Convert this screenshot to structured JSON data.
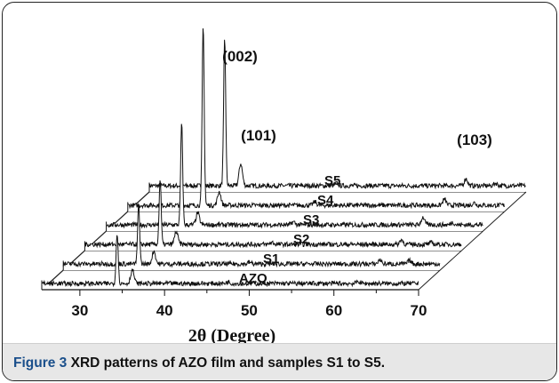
{
  "caption": {
    "label": "Figure 3",
    "text": "XRD patterns of AZO film and samples S1 to S5."
  },
  "chart_data": {
    "type": "line",
    "layout": "waterfall-3d",
    "xlabel": "2θ (Degree)",
    "ylabel": "",
    "xlim": [
      25.5,
      70
    ],
    "xticks": [
      30,
      40,
      50,
      60,
      70
    ],
    "grid": false,
    "series": [
      {
        "name": "AZO",
        "peaks": [
          [
            34.4,
            6
          ],
          [
            36.2,
            1.6
          ],
          [
            47.5,
            0.2
          ],
          [
            62.9,
            0.25
          ]
        ]
      },
      {
        "name": "S1",
        "peaks": [
          [
            34.4,
            7
          ],
          [
            36.2,
            1.5
          ],
          [
            47.5,
            0.2
          ],
          [
            62.9,
            0.5
          ],
          [
            66.4,
            0.4
          ]
        ]
      },
      {
        "name": "S2",
        "peaks": [
          [
            34.4,
            7.6
          ],
          [
            36.3,
            1.5
          ],
          [
            47.6,
            0.25
          ],
          [
            62.9,
            0.55
          ],
          [
            66.4,
            0.2
          ]
        ]
      },
      {
        "name": "S3",
        "peaks": [
          [
            34.4,
            11.8
          ],
          [
            36.3,
            1.4
          ],
          [
            47.6,
            0.35
          ],
          [
            62.9,
            0.9
          ],
          [
            66.4,
            0.3
          ]
        ]
      },
      {
        "name": "S4",
        "peaks": [
          [
            34.4,
            21
          ],
          [
            36.3,
            1.6
          ],
          [
            47.6,
            0.4
          ],
          [
            62.9,
            0.7
          ],
          [
            66.4,
            0.3
          ]
        ]
      },
      {
        "name": "S5",
        "peaks": [
          [
            34.4,
            17.2
          ],
          [
            36.3,
            2.6
          ],
          [
            47.6,
            0.3
          ],
          [
            62.9,
            0.85
          ],
          [
            66.4,
            0.3
          ]
        ]
      }
    ],
    "annotations": [
      {
        "text": "(002)",
        "x": 34.4,
        "series": "S5"
      },
      {
        "text": "(101)",
        "x": 36.3,
        "series": "S5"
      },
      {
        "text": "(103)",
        "x": 62.9,
        "series": "S5"
      }
    ]
  }
}
